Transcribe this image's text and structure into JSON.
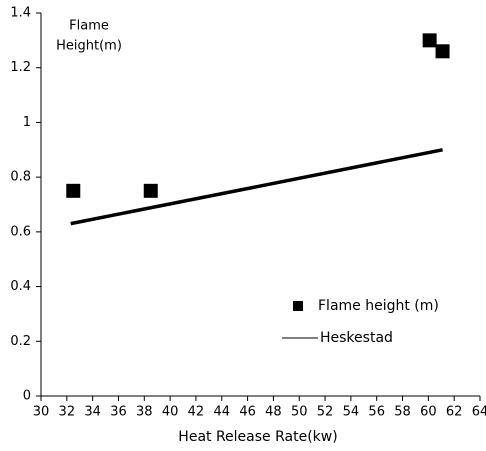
{
  "chart_data": {
    "type": "scatter",
    "xlabel": "Heat Release Rate(kw)",
    "ylabel": [
      "Flame",
      "Height(m)"
    ],
    "xlim": [
      30,
      64
    ],
    "xticks": [
      30,
      32,
      34,
      36,
      38,
      40,
      42,
      44,
      46,
      48,
      50,
      52,
      54,
      56,
      58,
      60,
      62,
      64
    ],
    "ylim": [
      0,
      1.4
    ],
    "yticks": [
      0,
      0.2,
      0.4,
      0.6,
      0.8,
      1,
      1.2,
      1.4
    ],
    "grid": false,
    "legend": "lower right",
    "series": [
      {
        "name": "Flame height (m)",
        "style": "markers",
        "color": "#000000",
        "x": [
          32.5,
          38.5,
          60.1,
          61.1
        ],
        "values": [
          0.75,
          0.75,
          1.3,
          1.26
        ]
      },
      {
        "name": "Heskestad",
        "style": "line",
        "color": "#000000",
        "x": [
          32.3,
          61.1
        ],
        "values": [
          0.63,
          0.9
        ]
      }
    ]
  }
}
